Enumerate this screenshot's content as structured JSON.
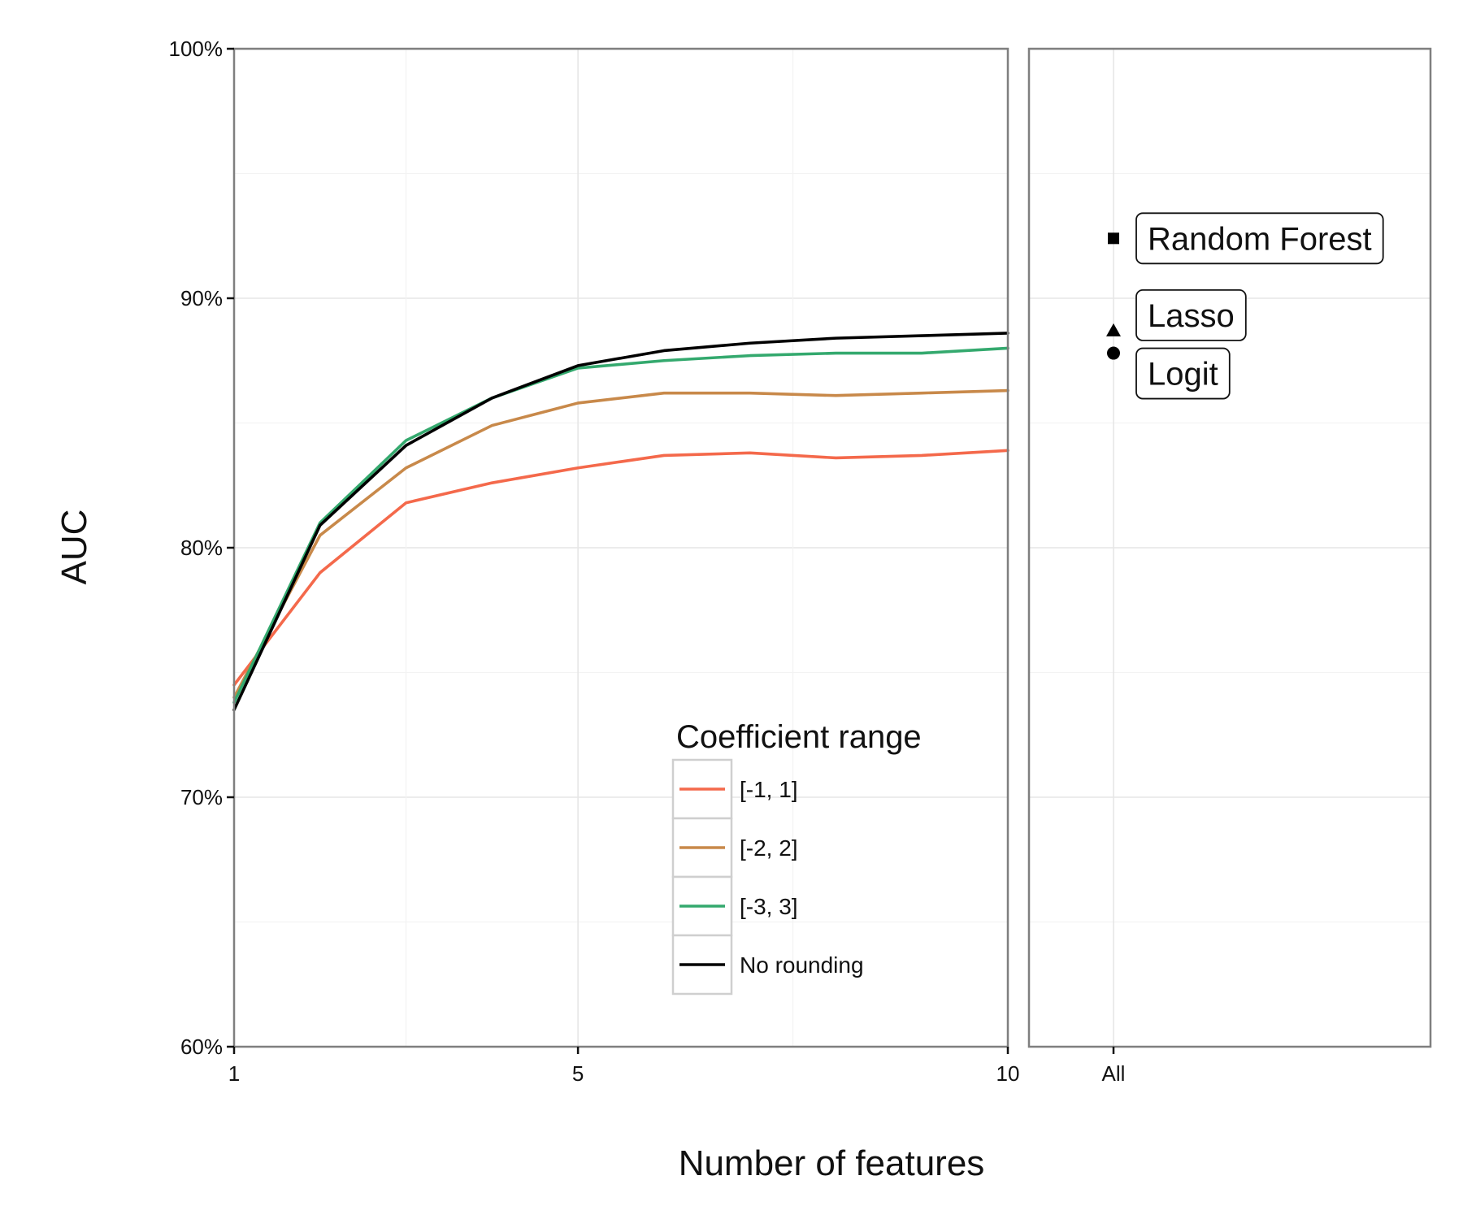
{
  "chart_data": {
    "type": "line",
    "ylabel": "AUC",
    "xlabel": "Number of features",
    "ylim": [
      60,
      100
    ],
    "yticks": [
      60,
      70,
      80,
      90,
      100
    ],
    "ytick_labels": [
      "60%",
      "70%",
      "80%",
      "90%",
      "100%"
    ],
    "xlim": [
      1,
      10
    ],
    "xticks": [
      1,
      5,
      10
    ],
    "xtick_labels": [
      "1",
      "5",
      "10"
    ],
    "x": [
      1,
      2,
      3,
      4,
      5,
      6,
      7,
      8,
      9,
      10
    ],
    "legend": {
      "title": "Coefficient range",
      "placement": "bottom-right"
    },
    "series": [
      {
        "name": "[-1, 1]",
        "color": "#f4694b",
        "values": [
          74.5,
          79.0,
          81.8,
          82.6,
          83.2,
          83.7,
          83.8,
          83.6,
          83.7,
          83.9
        ]
      },
      {
        "name": "[-2, 2]",
        "color": "#c8894a",
        "values": [
          74.0,
          80.5,
          83.2,
          84.9,
          85.8,
          86.2,
          86.2,
          86.1,
          86.2,
          86.3
        ]
      },
      {
        "name": "[-3, 3]",
        "color": "#34a96e",
        "values": [
          73.8,
          81.0,
          84.3,
          86.0,
          87.2,
          87.5,
          87.7,
          87.8,
          87.8,
          88.0
        ]
      },
      {
        "name": "No rounding",
        "color": "#000000",
        "values": [
          73.5,
          80.9,
          84.1,
          86.0,
          87.3,
          87.9,
          88.2,
          88.4,
          88.5,
          88.6
        ]
      }
    ],
    "side_panel": {
      "category": "All",
      "points": [
        {
          "label": "Random Forest",
          "value": 92.4,
          "shape": "square"
        },
        {
          "label": "Lasso",
          "value": 88.7,
          "shape": "triangle"
        },
        {
          "label": "Logit",
          "value": 87.8,
          "shape": "circle"
        }
      ]
    },
    "grid": true
  }
}
